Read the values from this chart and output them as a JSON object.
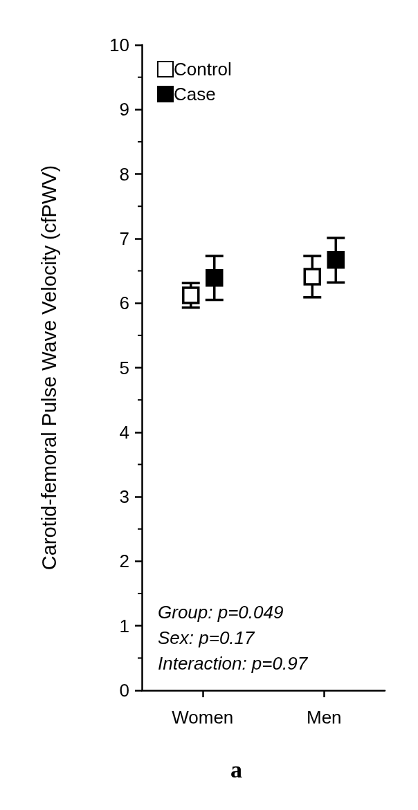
{
  "chart_data": {
    "type": "scatter",
    "ylabel": "Carotid-femoral Pulse Wave Velocity (cfPWV)",
    "categories": [
      "Women",
      "Men"
    ],
    "series": [
      {
        "name": "Control",
        "color": "#ffffff",
        "values": [
          6.12,
          6.41
        ],
        "errors": [
          [
            5.93,
            6.31
          ],
          [
            6.09,
            6.73
          ]
        ]
      },
      {
        "name": "Case",
        "color": "#000000",
        "values": [
          6.39,
          6.67
        ],
        "errors": [
          [
            6.05,
            6.73
          ],
          [
            6.32,
            7.01
          ]
        ]
      }
    ],
    "ylim": [
      0,
      10
    ],
    "yticks": [
      0,
      1,
      2,
      3,
      4,
      5,
      6,
      7,
      8,
      9,
      10
    ],
    "grid": false,
    "legend": "top left",
    "marker": "square",
    "annotations": [
      "Group: p=0.049",
      "Sex: p=0.17",
      "Interaction: p=0.97",
      "a"
    ]
  }
}
